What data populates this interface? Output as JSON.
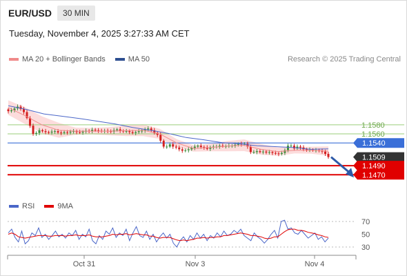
{
  "header": {
    "symbol": "EUR/USD",
    "timeframe": "30 MIN"
  },
  "timestamp": "Tuesday, November 4, 2025 3:27:33 AM CET",
  "legend": {
    "ma20_label": "MA 20 + Bollinger Bands",
    "ma50_label": "MA 50",
    "credit": "Research © 2025 Trading Central"
  },
  "rsi_legend": {
    "rsi_label": "RSI",
    "ma_label": "9MA"
  },
  "colors": {
    "bull": "#3f8f3f",
    "bear": "#d42020",
    "bollinger": "#fbd0d0",
    "ma20": "#f08a8a",
    "ma50": "#4a66c8",
    "resistance": "#9acd7a",
    "pivot": "#3a6fd8",
    "support": "#e00000",
    "current": "#333333",
    "arrow": "#2e5aa8"
  },
  "chart_data": [
    {
      "type": "candlestick",
      "symbol": "EUR/USD",
      "timeframe": "30 MIN",
      "ylim": [
        1.144,
        1.163
      ],
      "x_ticks": [
        "Oct 31",
        "Nov 3",
        "Nov 4"
      ],
      "series": [
        {
          "name": "MA 20 + Bollinger Bands",
          "kind": "line+band"
        },
        {
          "name": "MA 50",
          "kind": "line"
        }
      ],
      "levels": [
        {
          "value": 1.158,
          "label": "1.1580",
          "role": "resistance"
        },
        {
          "value": 1.156,
          "label": "1.1560",
          "role": "resistance"
        },
        {
          "value": 1.154,
          "label": "1.1540",
          "role": "pivot"
        },
        {
          "value": 1.1509,
          "label": "1.1509",
          "role": "current"
        },
        {
          "value": 1.149,
          "label": "1.1490",
          "role": "support"
        },
        {
          "value": 1.147,
          "label": "1.1470",
          "role": "support"
        }
      ],
      "close_path": [
        1.161,
        1.1612,
        1.1616,
        1.162,
        1.1615,
        1.1608,
        1.1595,
        1.1578,
        1.156,
        1.1562,
        1.1568,
        1.1566,
        1.1564,
        1.1563,
        1.1565,
        1.1566,
        1.1563,
        1.1562,
        1.1564,
        1.1563,
        1.1565,
        1.1566,
        1.1564,
        1.1563,
        1.1565,
        1.1567,
        1.1566,
        1.1569,
        1.1568,
        1.1567,
        1.1566,
        1.1567,
        1.1566,
        1.1565,
        1.1568,
        1.157,
        1.1567,
        1.1566,
        1.1566,
        1.1564,
        1.1562,
        1.1564,
        1.1566,
        1.1567,
        1.157,
        1.1572,
        1.1568,
        1.1562,
        1.1558,
        1.1545,
        1.1532,
        1.1532,
        1.1537,
        1.1532,
        1.153,
        1.1526,
        1.1523,
        1.1524,
        1.1526,
        1.1529,
        1.1532,
        1.1534,
        1.1531,
        1.153,
        1.1527,
        1.153,
        1.1532,
        1.1532,
        1.1534,
        1.1533,
        1.1533,
        1.1534,
        1.1534,
        1.1536,
        1.1538,
        1.1537,
        1.1538,
        1.1532,
        1.152,
        1.152,
        1.1522,
        1.152,
        1.1521,
        1.1519,
        1.152,
        1.1518,
        1.1517,
        1.1516,
        1.1518,
        1.1524,
        1.1534,
        1.1534,
        1.1528,
        1.1532,
        1.153,
        1.1526,
        1.1525,
        1.1525,
        1.1524,
        1.1524,
        1.1523,
        1.1521,
        1.1516,
        1.1509
      ],
      "ma50_path": [
        1.1622,
        1.1614,
        1.1604,
        1.1599,
        1.1594,
        1.1588,
        1.1582,
        1.1574,
        1.1568,
        1.1561,
        1.1552,
        1.1547,
        1.1541,
        1.1538,
        1.1534,
        1.1532,
        1.153,
        1.1526,
        1.1527
      ],
      "ma20_path": [
        1.1618,
        1.16,
        1.158,
        1.1568,
        1.1566,
        1.1566,
        1.1566,
        1.1567,
        1.1568,
        1.156,
        1.154,
        1.1528,
        1.153,
        1.1533,
        1.1535,
        1.1526,
        1.1521,
        1.1524,
        1.1524,
        1.1522
      ],
      "projection": {
        "from": 1.1509,
        "to": 1.147
      }
    },
    {
      "type": "line",
      "title": "RSI",
      "y_ticks": [
        70,
        50,
        30
      ],
      "ylim": [
        20,
        80
      ],
      "series": [
        {
          "name": "RSI",
          "values": [
            52,
            58,
            45,
            38,
            55,
            35,
            40,
            52,
            48,
            60,
            45,
            50,
            42,
            48,
            55,
            46,
            50,
            44,
            52,
            48,
            56,
            42,
            50,
            46,
            58,
            40,
            35,
            48,
            42,
            55,
            50,
            60,
            45,
            52,
            48,
            58,
            40,
            52,
            62,
            48,
            45,
            55,
            42,
            50,
            38,
            46,
            52,
            44,
            50,
            36,
            30,
            40,
            46,
            38,
            48,
            42,
            52,
            44,
            50,
            40,
            48,
            44,
            52,
            46,
            55,
            48,
            50,
            56,
            52,
            58,
            48,
            44,
            40,
            52,
            46,
            42,
            36,
            42,
            50,
            56,
            44,
            70,
            72,
            58,
            60,
            52,
            50,
            56,
            50,
            44,
            48,
            52,
            42,
            46,
            38,
            44
          ]
        },
        {
          "name": "9MA",
          "values": [
            50,
            52,
            50,
            46,
            45,
            44,
            45,
            46,
            47,
            48,
            48,
            48,
            47,
            47,
            48,
            48,
            48,
            47,
            48,
            48,
            49,
            48,
            48,
            48,
            49,
            47,
            46,
            46,
            46,
            47,
            48,
            50,
            49,
            50,
            50,
            51,
            49,
            50,
            51,
            50,
            49,
            49,
            47,
            47,
            45,
            44,
            45,
            45,
            45,
            43,
            41,
            40,
            41,
            40,
            41,
            42,
            44,
            44,
            45,
            44,
            45,
            45,
            46,
            46,
            48,
            48,
            49,
            50,
            51,
            52,
            51,
            50,
            48,
            48,
            47,
            46,
            44,
            43,
            44,
            46,
            46,
            50,
            54,
            57,
            58,
            58,
            56,
            56,
            55,
            53,
            52,
            51,
            49,
            48,
            46,
            45
          ]
        }
      ]
    }
  ]
}
